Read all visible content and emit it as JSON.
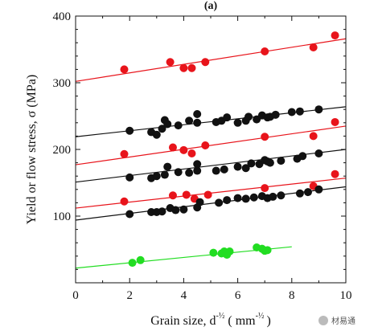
{
  "chart_data": {
    "type": "scatter",
    "panel_label": "(a)",
    "xlabel_prefix": "Grain size, d",
    "xlabel_exp": "-½",
    "xlabel_unit": "( mm",
    "xlabel_unit_exp": "-½",
    "xlabel_close": ")",
    "ylabel": "Yield or flow stress, σ (MPa)",
    "xlim": [
      0,
      10
    ],
    "ylim": [
      0,
      400
    ],
    "xticks": [
      "0",
      "2",
      "4",
      "6",
      "8",
      "10"
    ],
    "yticks": [
      "100",
      "200",
      "300",
      "400"
    ],
    "grid": false,
    "colors": {
      "red": "#e8141b",
      "black": "#111111",
      "green": "#22dd22"
    },
    "series": [
      {
        "color": "red",
        "line": [
          [
            0,
            302
          ],
          [
            10,
            366
          ]
        ],
        "points": [
          [
            1.8,
            320
          ],
          [
            3.5,
            331
          ],
          [
            4.0,
            322
          ],
          [
            4.3,
            322
          ],
          [
            4.8,
            331
          ],
          [
            7.0,
            347
          ],
          [
            8.8,
            353
          ],
          [
            9.6,
            371
          ]
        ]
      },
      {
        "color": "black",
        "line": [
          [
            0,
            219
          ],
          [
            10,
            264
          ]
        ],
        "points": [
          [
            2.0,
            228
          ],
          [
            2.8,
            226
          ],
          [
            3.0,
            222
          ],
          [
            3.2,
            231
          ],
          [
            3.3,
            244
          ],
          [
            3.4,
            238
          ],
          [
            3.8,
            236
          ],
          [
            4.2,
            243
          ],
          [
            4.5,
            240
          ],
          [
            4.5,
            253
          ],
          [
            5.2,
            241
          ],
          [
            5.4,
            243
          ],
          [
            5.6,
            248
          ],
          [
            6.0,
            240
          ],
          [
            6.3,
            243
          ],
          [
            6.4,
            249
          ],
          [
            6.7,
            245
          ],
          [
            6.9,
            251
          ],
          [
            7.1,
            248
          ],
          [
            7.2,
            249
          ],
          [
            7.4,
            252
          ],
          [
            8.0,
            256
          ],
          [
            8.3,
            257
          ],
          [
            9.0,
            260
          ]
        ]
      },
      {
        "color": "red",
        "line": [
          [
            0,
            177
          ],
          [
            10,
            235
          ]
        ],
        "points": [
          [
            1.8,
            193
          ],
          [
            3.6,
            203
          ],
          [
            4.0,
            199
          ],
          [
            4.3,
            194
          ],
          [
            4.8,
            206
          ],
          [
            7.0,
            219
          ],
          [
            8.8,
            220
          ],
          [
            9.6,
            241
          ]
        ]
      },
      {
        "color": "black",
        "line": [
          [
            0,
            151
          ],
          [
            10,
            200
          ]
        ],
        "points": [
          [
            2.0,
            158
          ],
          [
            2.8,
            157
          ],
          [
            3.0,
            160
          ],
          [
            3.3,
            162
          ],
          [
            3.4,
            174
          ],
          [
            3.8,
            166
          ],
          [
            4.2,
            165
          ],
          [
            4.5,
            168
          ],
          [
            4.5,
            178
          ],
          [
            5.2,
            168
          ],
          [
            5.5,
            170
          ],
          [
            6.0,
            174
          ],
          [
            6.3,
            172
          ],
          [
            6.5,
            179
          ],
          [
            6.8,
            178
          ],
          [
            7.0,
            184
          ],
          [
            7.1,
            182
          ],
          [
            7.2,
            180
          ],
          [
            7.6,
            183
          ],
          [
            8.2,
            186
          ],
          [
            8.4,
            190
          ],
          [
            9.0,
            194
          ]
        ]
      },
      {
        "color": "red",
        "line": [
          [
            0,
            112
          ],
          [
            10,
            157
          ]
        ],
        "points": [
          [
            1.8,
            122
          ],
          [
            3.6,
            131
          ],
          [
            4.1,
            132
          ],
          [
            4.4,
            126
          ],
          [
            4.9,
            132
          ],
          [
            7.0,
            142
          ],
          [
            8.8,
            145
          ],
          [
            9.6,
            163
          ]
        ]
      },
      {
        "color": "black",
        "line": [
          [
            0,
            94
          ],
          [
            10,
            144
          ]
        ],
        "points": [
          [
            2.0,
            103
          ],
          [
            2.8,
            106
          ],
          [
            3.0,
            106
          ],
          [
            3.2,
            107
          ],
          [
            3.5,
            112
          ],
          [
            3.7,
            109
          ],
          [
            4.0,
            110
          ],
          [
            4.5,
            113
          ],
          [
            4.6,
            121
          ],
          [
            5.3,
            120
          ],
          [
            5.6,
            124
          ],
          [
            6.0,
            127
          ],
          [
            6.3,
            126
          ],
          [
            6.6,
            128
          ],
          [
            6.9,
            130
          ],
          [
            7.1,
            127
          ],
          [
            7.3,
            129
          ],
          [
            7.6,
            131
          ],
          [
            8.3,
            134
          ],
          [
            8.6,
            136
          ],
          [
            9.0,
            140
          ]
        ]
      },
      {
        "color": "green",
        "line": [
          [
            0,
            22
          ],
          [
            8,
            54
          ]
        ],
        "points": [
          [
            2.1,
            30
          ],
          [
            2.4,
            34
          ],
          [
            5.1,
            45
          ],
          [
            5.4,
            44
          ],
          [
            5.5,
            47
          ],
          [
            5.6,
            42
          ],
          [
            5.7,
            47
          ],
          [
            6.7,
            53
          ],
          [
            6.9,
            51
          ],
          [
            7.0,
            48
          ],
          [
            7.1,
            49
          ]
        ]
      }
    ]
  },
  "watermark": {
    "text": "材易通"
  }
}
